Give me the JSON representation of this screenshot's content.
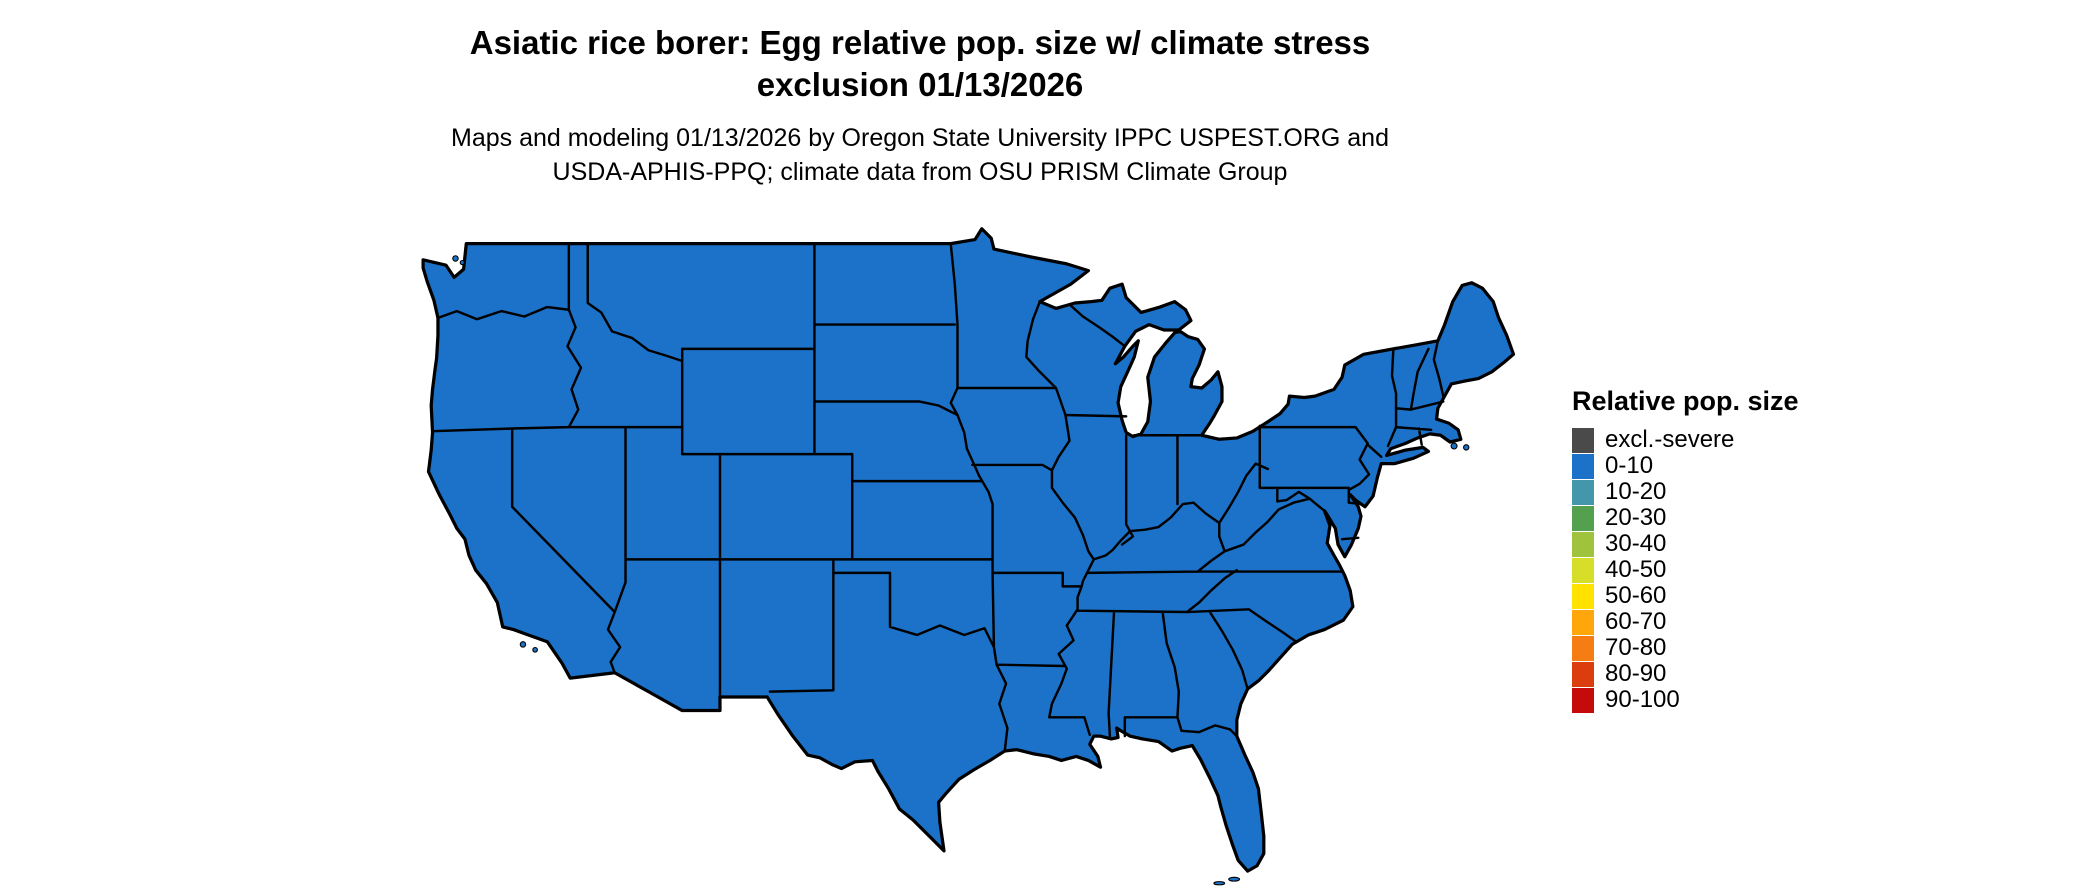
{
  "title": {
    "line1": "Asiatic rice borer: Egg relative pop. size w/ climate stress",
    "line2": "exclusion 01/13/2026"
  },
  "subtitle": {
    "line1": "Maps and modeling 01/13/2026 by Oregon State University IPPC USPEST.ORG and",
    "line2": "USDA-APHIS-PPQ; climate data from OSU PRISM Climate Group"
  },
  "map": {
    "region": "Continental United States",
    "fill_color": "#1B72C8",
    "border_color": "#000000",
    "background_color": "#ffffff"
  },
  "legend": {
    "title": "Relative pop. size",
    "items": [
      {
        "label": "excl.-severe",
        "color": "#4A4A4A"
      },
      {
        "label": "0-10",
        "color": "#1B72C8"
      },
      {
        "label": "10-20",
        "color": "#4496AB"
      },
      {
        "label": "20-30",
        "color": "#53A14F"
      },
      {
        "label": "30-40",
        "color": "#9FC33C"
      },
      {
        "label": "40-50",
        "color": "#D6DE2A"
      },
      {
        "label": "50-60",
        "color": "#FFE200"
      },
      {
        "label": "60-70",
        "color": "#FFA60A"
      },
      {
        "label": "70-80",
        "color": "#F57D14"
      },
      {
        "label": "80-90",
        "color": "#DC3D0E"
      },
      {
        "label": "90-100",
        "color": "#C50A0A"
      }
    ]
  }
}
